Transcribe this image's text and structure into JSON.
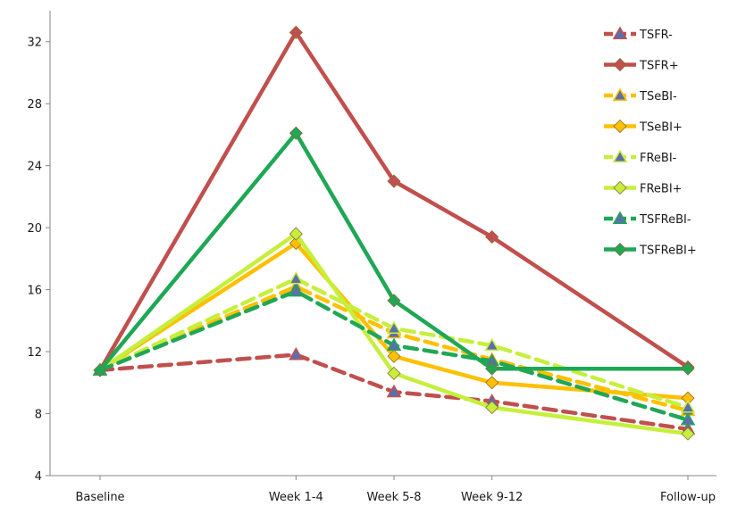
{
  "chart_data": {
    "type": "line",
    "title": "",
    "xlabel": "",
    "ylabel": "",
    "categories": [
      "Baseline",
      "Week 1-4",
      "Week 5-8",
      "Week 9-12",
      "Follow-up"
    ],
    "x_positions": [
      0,
      2,
      3,
      4,
      6
    ],
    "ylim": [
      4,
      34
    ],
    "yticks": [
      4,
      8,
      12,
      16,
      20,
      24,
      28,
      32
    ],
    "grid": false,
    "legend_position": "top-right",
    "series": [
      {
        "name": "TSFR-",
        "values": [
          10.8,
          11.8,
          9.4,
          8.8,
          7.0
        ],
        "color": "#c0504d",
        "dash": true,
        "marker": "triangle"
      },
      {
        "name": "TSFR+",
        "values": [
          10.8,
          32.6,
          23.0,
          19.4,
          11.0
        ],
        "color": "#c0504d",
        "dash": false,
        "marker": "diamond"
      },
      {
        "name": "TSeBI-",
        "values": [
          10.8,
          16.2,
          13.2,
          11.5,
          8.2
        ],
        "color": "#ffc000",
        "dash": true,
        "marker": "triangle"
      },
      {
        "name": "TSeBI+",
        "values": [
          10.8,
          19.0,
          11.7,
          10.0,
          9.0
        ],
        "color": "#ffc000",
        "dash": false,
        "marker": "diamond"
      },
      {
        "name": "FReBI-",
        "values": [
          10.8,
          16.7,
          13.5,
          12.4,
          8.4
        ],
        "color": "#c6ef3c",
        "dash": true,
        "marker": "triangle"
      },
      {
        "name": "FReBI+",
        "values": [
          10.8,
          19.6,
          10.6,
          8.4,
          6.7
        ],
        "color": "#c6ef3c",
        "dash": false,
        "marker": "diamond"
      },
      {
        "name": "TSFReBI-",
        "values": [
          10.8,
          15.9,
          12.4,
          11.4,
          7.6
        ],
        "color": "#1fa755",
        "dash": true,
        "marker": "triangle"
      },
      {
        "name": "TSFReBI+",
        "values": [
          10.8,
          26.1,
          15.3,
          10.9,
          10.9
        ],
        "color": "#1fa755",
        "dash": false,
        "marker": "diamond"
      }
    ]
  }
}
